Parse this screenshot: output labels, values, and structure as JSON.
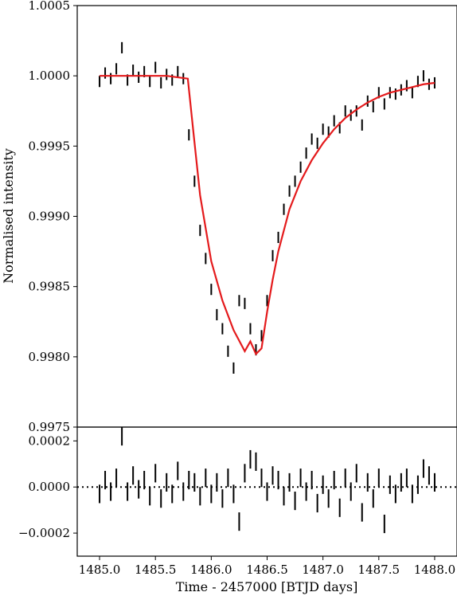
{
  "chart_data": [
    {
      "type": "line",
      "panel": "lightcurve",
      "title": "",
      "xlabel": "Time - 2457000 [BTJD days]",
      "ylabel": "Normalised intensity",
      "xlim": [
        1484.8,
        1488.2
      ],
      "ylim": [
        0.9975,
        1.0005
      ],
      "xticks": [
        1485.0,
        1485.5,
        1486.0,
        1486.5,
        1487.0,
        1487.5,
        1488.0
      ],
      "xtick_labels": [
        "1485.0",
        "1485.5",
        "1486.0",
        "1486.5",
        "1487.0",
        "1487.5",
        "1488.0"
      ],
      "yticks": [
        0.9975,
        0.998,
        0.9985,
        0.999,
        0.9995,
        1.0,
        1.0005
      ],
      "ytick_labels": [
        "0.9975",
        "0.9980",
        "0.9985",
        "0.9990",
        "0.9995",
        "1.0000",
        "1.0005"
      ],
      "grid": false,
      "series": [
        {
          "kind": "errorbar",
          "color": "#000000",
          "yerr": 4e-05,
          "x": [
            1485.0,
            1485.05,
            1485.1,
            1485.15,
            1485.2,
            1485.25,
            1485.3,
            1485.35,
            1485.4,
            1485.45,
            1485.5,
            1485.55,
            1485.6,
            1485.65,
            1485.7,
            1485.75,
            1485.8,
            1485.85,
            1485.9,
            1485.95,
            1486.0,
            1486.05,
            1486.1,
            1486.15,
            1486.2,
            1486.25,
            1486.3,
            1486.35,
            1486.4,
            1486.45,
            1486.5,
            1486.55,
            1486.6,
            1486.65,
            1486.7,
            1486.75,
            1486.8,
            1486.85,
            1486.9,
            1486.95,
            1487.0,
            1487.05,
            1487.1,
            1487.15,
            1487.2,
            1487.25,
            1487.3,
            1487.35,
            1487.4,
            1487.45,
            1487.5,
            1487.55,
            1487.6,
            1487.65,
            1487.7,
            1487.75,
            1487.8,
            1487.85,
            1487.9,
            1487.95,
            1488.0
          ],
          "y": [
            0.99996,
            1.00002,
            0.99998,
            1.00005,
            1.0002,
            0.99997,
            1.00004,
            0.99999,
            1.00003,
            0.99996,
            1.00006,
            0.99995,
            1.00001,
            0.99997,
            1.00003,
            0.99998,
            0.99958,
            0.99925,
            0.9989,
            0.9987,
            0.99848,
            0.9983,
            0.9982,
            0.99804,
            0.99792,
            0.9984,
            0.99838,
            0.9982,
            0.99805,
            0.99815,
            0.9984,
            0.99872,
            0.99885,
            0.99905,
            0.99918,
            0.99925,
            0.99935,
            0.99945,
            0.99955,
            0.99952,
            0.99962,
            0.9996,
            0.99968,
            0.99963,
            0.99975,
            0.99972,
            0.99975,
            0.99965,
            0.99982,
            0.99978,
            0.99988,
            0.9998,
            0.99988,
            0.99987,
            0.9999,
            0.99993,
            0.99988,
            0.99996,
            1.0,
            0.99994,
            0.99995
          ]
        },
        {
          "kind": "model",
          "color": "#e41a1c",
          "x": [
            1485.0,
            1485.2,
            1485.4,
            1485.6,
            1485.79,
            1485.84,
            1485.9,
            1486.0,
            1486.1,
            1486.2,
            1486.3,
            1486.35,
            1486.4,
            1486.45,
            1486.5,
            1486.55,
            1486.6,
            1486.7,
            1486.8,
            1486.9,
            1487.0,
            1487.1,
            1487.2,
            1487.3,
            1487.4,
            1487.5,
            1487.6,
            1487.7,
            1487.8,
            1487.9,
            1488.0
          ],
          "y": [
            1.0,
            1.0,
            1.0,
            1.0,
            0.99998,
            0.9996,
            0.99915,
            0.99868,
            0.9984,
            0.99819,
            0.99804,
            0.99811,
            0.99802,
            0.99806,
            0.99832,
            0.99855,
            0.99875,
            0.99905,
            0.99925,
            0.9994,
            0.99952,
            0.99962,
            0.9997,
            0.99976,
            0.99981,
            0.99985,
            0.99988,
            0.9999,
            0.99992,
            0.99994,
            0.99995
          ]
        }
      ]
    },
    {
      "type": "scatter",
      "panel": "residuals",
      "title": "",
      "xlabel": "Time - 2457000 [BTJD days]",
      "ylabel": "",
      "xlim": [
        1484.8,
        1488.2
      ],
      "ylim": [
        -0.0003,
        0.00026
      ],
      "yticks": [
        -0.0002,
        0.0,
        0.0002
      ],
      "ytick_labels": [
        "−0.0002",
        "0.0000",
        "0.0002"
      ],
      "zero_line": "dotted",
      "grid": false,
      "series": [
        {
          "kind": "errorbar",
          "color": "#000000",
          "yerr": 4e-05,
          "x": [
            1485.0,
            1485.05,
            1485.1,
            1485.15,
            1485.2,
            1485.25,
            1485.3,
            1485.35,
            1485.4,
            1485.45,
            1485.5,
            1485.55,
            1485.6,
            1485.65,
            1485.7,
            1485.75,
            1485.8,
            1485.85,
            1485.9,
            1485.95,
            1486.0,
            1486.05,
            1486.1,
            1486.15,
            1486.2,
            1486.25,
            1486.3,
            1486.35,
            1486.4,
            1486.45,
            1486.5,
            1486.55,
            1486.6,
            1486.65,
            1486.7,
            1486.75,
            1486.8,
            1486.85,
            1486.9,
            1486.95,
            1487.0,
            1487.05,
            1487.1,
            1487.15,
            1487.2,
            1487.25,
            1487.3,
            1487.35,
            1487.4,
            1487.45,
            1487.5,
            1487.55,
            1487.6,
            1487.65,
            1487.7,
            1487.75,
            1487.8,
            1487.85,
            1487.9,
            1487.95,
            1488.0
          ],
          "y": [
            -3e-05,
            3e-05,
            -2e-05,
            4e-05,
            0.00022,
            -2e-05,
            5e-05,
            -1e-05,
            3e-05,
            -4e-05,
            6e-05,
            -5e-05,
            2e-05,
            -3e-05,
            7e-05,
            -2e-05,
            3e-05,
            2e-05,
            -4e-05,
            4e-05,
            -3e-05,
            2e-05,
            -5e-05,
            4e-05,
            -3e-05,
            -0.00015,
            6e-05,
            0.00012,
            0.00011,
            4e-05,
            -2e-05,
            5e-05,
            3e-05,
            -4e-05,
            2e-05,
            -6e-05,
            4e-05,
            -2e-05,
            3e-05,
            -7e-05,
            1e-05,
            -5e-05,
            3e-05,
            -9e-05,
            4e-05,
            -2e-05,
            6e-05,
            -0.00011,
            2e-05,
            -5e-05,
            4e-05,
            -0.00016,
            1e-05,
            -3e-05,
            2e-05,
            4e-05,
            -3e-05,
            1e-05,
            8e-05,
            5e-05,
            2e-05
          ]
        }
      ]
    }
  ]
}
